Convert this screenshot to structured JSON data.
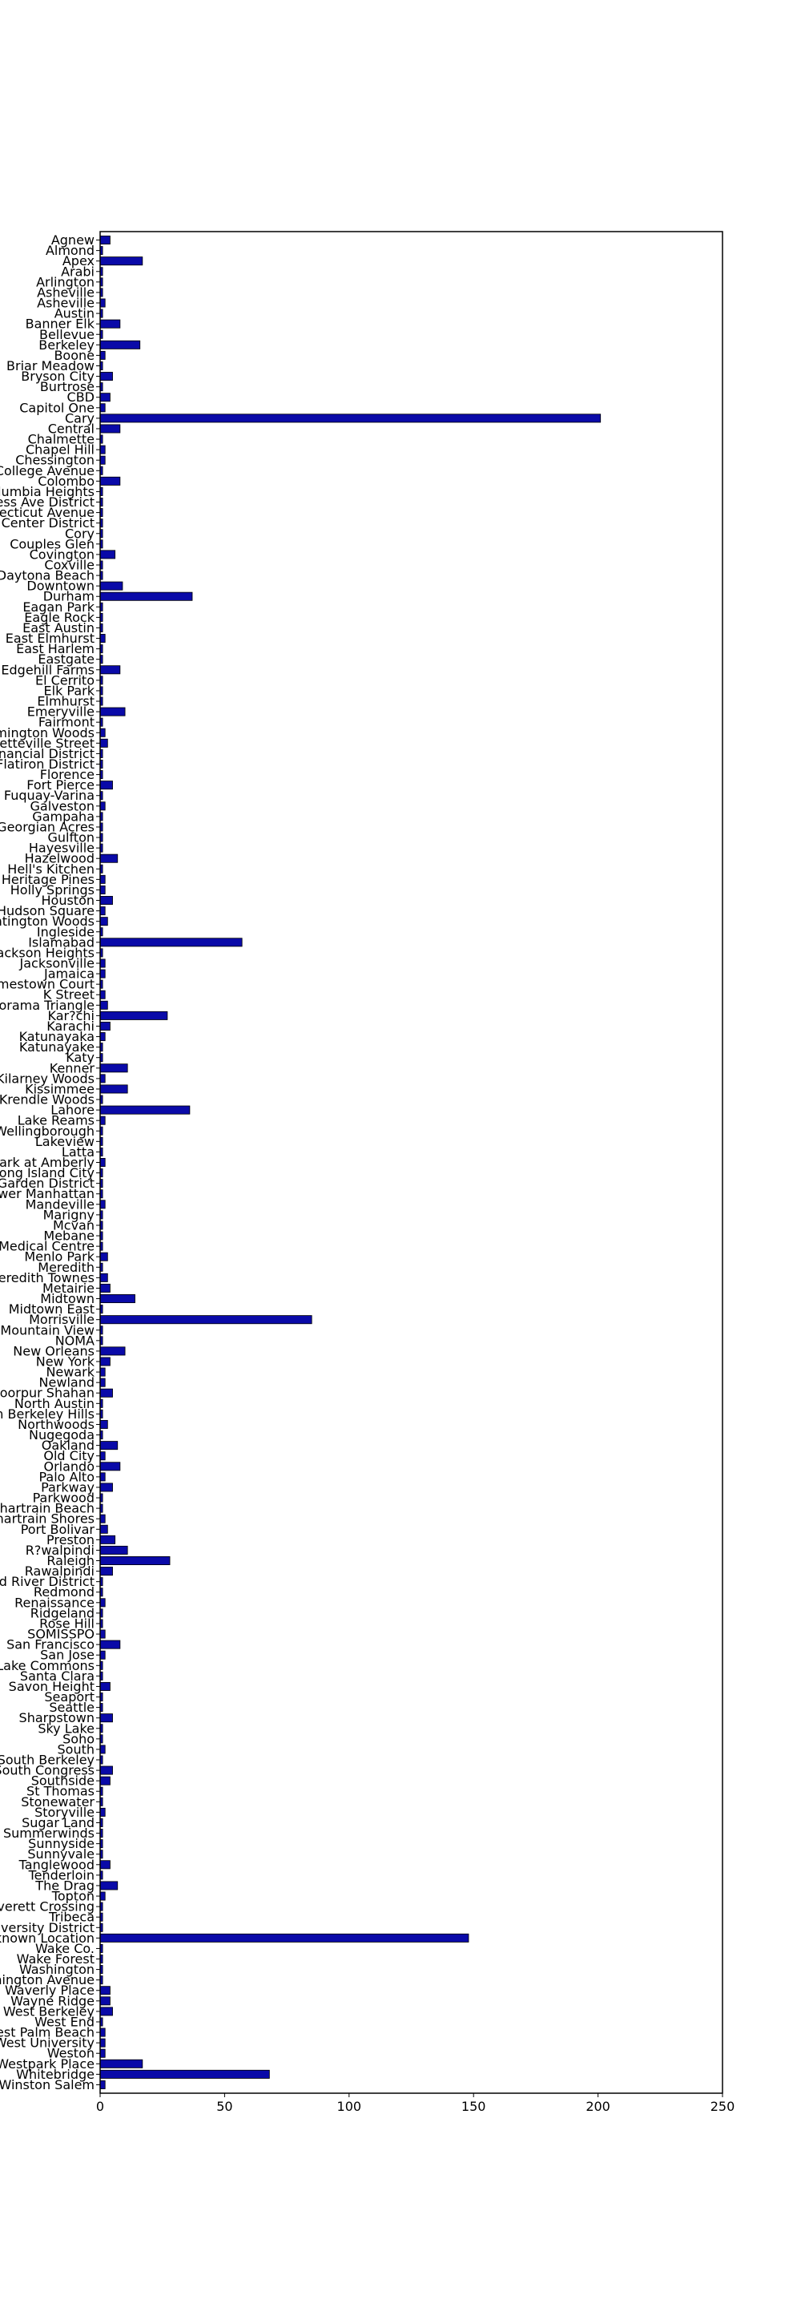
{
  "chart_data": {
    "type": "bar",
    "orientation": "horizontal",
    "title": "",
    "xlabel": "",
    "ylabel": "",
    "xlim": [
      0,
      250
    ],
    "xticks": [
      0,
      50,
      100,
      150,
      200,
      250
    ],
    "grid": false,
    "bar_color": "#0a0aa8",
    "categories": [
      "Agnew",
      "Almond",
      "Apex",
      "Arabi",
      "Arlington",
      "Asheville",
      "Asheville",
      "Austin",
      "Banner Elk",
      "Bellevue",
      "Berkeley",
      "Boone",
      "Briar Meadow",
      "Bryson City",
      "Burtrose",
      "CBD",
      "Capitol One",
      "Cary",
      "Central",
      "Chalmette",
      "Chapel Hill",
      "Chessington",
      "College Avenue",
      "Colombo",
      "Columbia Heights",
      "Congress Ave District",
      "Connecticut Avenue",
      "Convention Center District",
      "Cory",
      "Couples Glen",
      "Covington",
      "Coxville",
      "Daytona Beach",
      "Downtown",
      "Durham",
      "Eagan Park",
      "Eagle Rock",
      "East Austin",
      "East Elmhurst",
      "East Harlem",
      "Eastgate",
      "Edgehill Farms",
      "El Cerrito",
      "Elk Park",
      "Elmhurst",
      "Emeryville",
      "Fairmont",
      "Farmington Woods",
      "Fayetteville Street",
      "Financial District",
      "Flatiron District",
      "Florence",
      "Fort Pierce",
      "Fuquay-Varina",
      "Galveston",
      "Gampaha",
      "Georgian Acres",
      "Gulfton",
      "Hayesville",
      "Hazelwood",
      "Hell's Kitchen",
      "Heritage Pines",
      "Holly Springs",
      "Houston",
      "Hudson Square",
      "Huntington Woods",
      "Ingleside",
      "Islamabad",
      "Jackson Heights",
      "Jacksonville",
      "Jamaica",
      "Jamestown Court",
      "K Street",
      "Kalorama Triangle",
      "Kar?chi",
      "Karachi",
      "Katunayaka",
      "Katunayake",
      "Katy",
      "Kenner",
      "Kilarney Woods",
      "Kissimmee",
      "Krendle Woods",
      "Lahore",
      "Lake Reams",
      "Lake Wellingborough",
      "Lakeview",
      "Latta",
      "Leesville Park at Amberly",
      "Long Island City",
      "Lower Garden District",
      "Lower Manhattan",
      "Mandeville",
      "Marigny",
      "Mcvan",
      "Mebane",
      "Medical Centre",
      "Menlo Park",
      "Meredith",
      "Meredith Townes",
      "Metairie",
      "Midtown",
      "Midtown East",
      "Morrisville",
      "Mountain View",
      "NOMA",
      "New Orleans",
      "New York",
      "Newark",
      "Newland",
      "Noorpur Shahan",
      "North Austin",
      "North Berkeley Hills",
      "Northwoods",
      "Nugegoda",
      "Oakland",
      "Old City",
      "Orlando",
      "Palo Alto",
      "Parkway",
      "Parkwood",
      "Pontchartrain Beach",
      "Pontchartrain Shores",
      "Port Bolivar",
      "Preston",
      "R?walpindi",
      "Raleigh",
      "Rawalpindi",
      "Red River District",
      "Redmond",
      "Renaissance",
      "Ridgeland",
      "Rose Hill",
      "SOMISSPO",
      "San Francisco",
      "San Jose",
      "Sand Lake Commons",
      "Santa Clara",
      "Savon Height",
      "Seaport",
      "Seattle",
      "Sharpstown",
      "Sky Lake",
      "Soho",
      "South",
      "South Berkeley",
      "South Congress",
      "Southside",
      "St Thomas",
      "Stonewater",
      "Storyville",
      "Sugar Land",
      "Summerwinds",
      "Sunnyside",
      "Sunnyvale",
      "Tanglewood",
      "Tenderloin",
      "The Drag",
      "Topton",
      "Townes at Everett Crossing",
      "Tribeca",
      "University District",
      "Unknown Location",
      "Wake Co.",
      "Wake Forest",
      "Washington",
      "Washington Avenue",
      "Waverly Place",
      "Wayne Ridge",
      "West Berkeley",
      "West End",
      "West Palm Beach",
      "West University",
      "Weston",
      "Westpark Place",
      "Whitebridge",
      "Winston Salem"
    ],
    "values": [
      4,
      1,
      17,
      1,
      1,
      1,
      2,
      1,
      8,
      1,
      16,
      2,
      1,
      5,
      1,
      4,
      2,
      201,
      8,
      1,
      2,
      2,
      1,
      8,
      1,
      1,
      1,
      1,
      1,
      1,
      6,
      1,
      1,
      9,
      37,
      1,
      1,
      1,
      2,
      1,
      1,
      8,
      1,
      1,
      1,
      10,
      1,
      2,
      3,
      1,
      1,
      1,
      5,
      1,
      2,
      1,
      1,
      1,
      1,
      7,
      1,
      2,
      2,
      5,
      2,
      3,
      1,
      57,
      1,
      2,
      2,
      1,
      2,
      3,
      27,
      4,
      2,
      1,
      1,
      11,
      2,
      11,
      1,
      36,
      2,
      1,
      1,
      1,
      2,
      1,
      1,
      1,
      2,
      1,
      1,
      1,
      1,
      3,
      1,
      3,
      4,
      14,
      1,
      85,
      1,
      1,
      10,
      4,
      2,
      2,
      5,
      1,
      1,
      3,
      1,
      7,
      2,
      8,
      2,
      5,
      1,
      1,
      2,
      3,
      6,
      11,
      28,
      5,
      1,
      1,
      2,
      1,
      1,
      2,
      8,
      2,
      1,
      1,
      4,
      1,
      1,
      5,
      1,
      1,
      2,
      1,
      5,
      4,
      1,
      1,
      2,
      1,
      1,
      1,
      1,
      4,
      1,
      7,
      2,
      1,
      1,
      1,
      148,
      1,
      1,
      1,
      1,
      4,
      4,
      5,
      1,
      2,
      2,
      2,
      17,
      68,
      2
    ]
  }
}
